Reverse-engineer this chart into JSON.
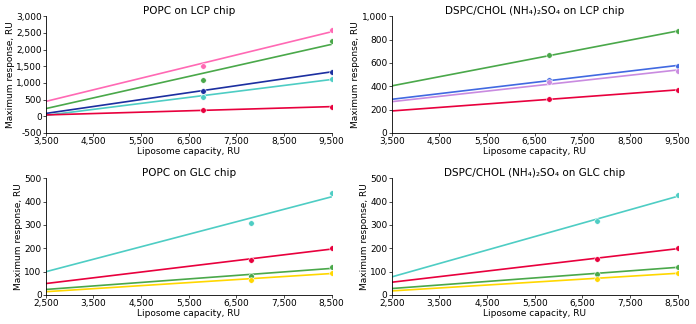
{
  "plots": [
    {
      "title": "POPC on LCP chip",
      "xlabel": "Liposome capacity, RU",
      "ylabel": "Maximum response, RU",
      "xlim": [
        3500,
        9500
      ],
      "ylim": [
        -500,
        3000
      ],
      "xticks": [
        3500,
        4500,
        5500,
        6500,
        7500,
        8500,
        9500
      ],
      "yticks": [
        -500,
        0,
        500,
        1000,
        1500,
        2000,
        2500,
        3000
      ],
      "lines": [
        {
          "color": "#FF69B4",
          "x": [
            3500,
            6800,
            9500
          ],
          "y": [
            480,
            1520,
            2580
          ]
        },
        {
          "color": "#4AA84A",
          "x": [
            3500,
            6800,
            9500
          ],
          "y": [
            320,
            1090,
            2270
          ]
        },
        {
          "color": "#1C2FA0",
          "x": [
            3500,
            6800,
            9500
          ],
          "y": [
            90,
            760,
            1340
          ]
        },
        {
          "color": "#4ECDC4",
          "x": [
            3500,
            6800,
            9500
          ],
          "y": [
            40,
            590,
            1120
          ]
        },
        {
          "color": "#E8003D",
          "x": [
            3500,
            6800,
            9500
          ],
          "y": [
            40,
            175,
            290
          ]
        }
      ]
    },
    {
      "title": "DSPC/CHOL (NH₄)₂SO₄ on LCP chip",
      "xlabel": "Liposome capacity, RU",
      "ylabel": "Maximum response, RU",
      "xlim": [
        3500,
        9500
      ],
      "ylim": [
        0,
        1000
      ],
      "xticks": [
        3500,
        4500,
        5500,
        6500,
        7500,
        8500,
        9500
      ],
      "yticks": [
        0,
        200,
        400,
        600,
        800,
        1000
      ],
      "lines": [
        {
          "color": "#4AA84A",
          "x": [
            3500,
            6800,
            9500
          ],
          "y": [
            400,
            670,
            870
          ]
        },
        {
          "color": "#4169E1",
          "x": [
            3500,
            6800,
            9500
          ],
          "y": [
            285,
            455,
            575
          ]
        },
        {
          "color": "#C98BE0",
          "x": [
            3500,
            6800,
            9500
          ],
          "y": [
            260,
            435,
            530
          ]
        },
        {
          "color": "#E8003D",
          "x": [
            3500,
            6800,
            9500
          ],
          "y": [
            185,
            295,
            365
          ]
        }
      ]
    },
    {
      "title": "POPC on GLC chip",
      "xlabel": "Liposome capacity, RU",
      "ylabel": "Maximum response, RU",
      "xlim": [
        2500,
        8500
      ],
      "ylim": [
        0,
        500
      ],
      "xticks": [
        2500,
        3500,
        4500,
        5500,
        6500,
        7500,
        8500
      ],
      "yticks": [
        0,
        100,
        200,
        300,
        400,
        500
      ],
      "lines": [
        {
          "color": "#4ECDC4",
          "x": [
            2500,
            6800,
            8500
          ],
          "y": [
            105,
            310,
            435
          ]
        },
        {
          "color": "#E8003D",
          "x": [
            2500,
            6800,
            8500
          ],
          "y": [
            50,
            150,
            200
          ]
        },
        {
          "color": "#4AA84A",
          "x": [
            2500,
            6800,
            8500
          ],
          "y": [
            25,
            82,
            118
          ]
        },
        {
          "color": "#FFD700",
          "x": [
            2500,
            6800,
            8500
          ],
          "y": [
            15,
            65,
            95
          ]
        }
      ]
    },
    {
      "title": "DSPC/CHOL (NH₄)₂SO₄ on GLC chip",
      "xlabel": "Liposome capacity, RU",
      "ylabel": "Maximum response, RU",
      "xlim": [
        2500,
        8500
      ],
      "ylim": [
        0,
        500
      ],
      "xticks": [
        2500,
        3500,
        4500,
        5500,
        6500,
        7500,
        8500
      ],
      "yticks": [
        0,
        100,
        200,
        300,
        400,
        500
      ],
      "lines": [
        {
          "color": "#4ECDC4",
          "x": [
            2500,
            6800,
            8500
          ],
          "y": [
            80,
            315,
            430
          ]
        },
        {
          "color": "#E8003D",
          "x": [
            2500,
            6800,
            8500
          ],
          "y": [
            55,
            155,
            200
          ]
        },
        {
          "color": "#4AA84A",
          "x": [
            2500,
            6800,
            8500
          ],
          "y": [
            28,
            90,
            120
          ]
        },
        {
          "color": "#FFD700",
          "x": [
            2500,
            6800,
            8500
          ],
          "y": [
            18,
            68,
            95
          ]
        }
      ]
    }
  ],
  "fig_bg": "#FFFFFF",
  "font_size": 6.5,
  "title_font_size": 7.5,
  "marker_size": 4,
  "linewidth": 1.2
}
